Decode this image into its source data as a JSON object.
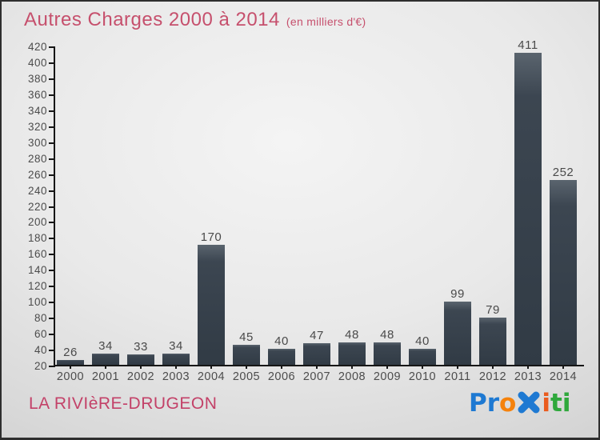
{
  "header": {
    "title": "Autres Charges 2000 à 2014",
    "subtitle": "(en milliers d'€)"
  },
  "footer": {
    "location": "LA RIVIèRE-DRUGEON"
  },
  "logo": {
    "name": "Proxiti",
    "letters": [
      {
        "char": "P",
        "color": "#1e79d2"
      },
      {
        "char": "r",
        "color": "#1e79d2"
      },
      {
        "char": "o",
        "color": "#f5820c"
      },
      {
        "char": "x",
        "color": "#1e79d2",
        "style": "x-icon"
      },
      {
        "char": "i",
        "color": "#ea5b1e"
      },
      {
        "char": "t",
        "color": "#2fa83c"
      },
      {
        "char": "i",
        "color": "#2fa83c"
      }
    ]
  },
  "colors": {
    "title_pink": "#c6506d",
    "location_pink": "#c34168",
    "bar_dark": "#313b45",
    "bar_light": "#5a646e",
    "axis": "#161616",
    "label_gray": "#4c4c4c"
  },
  "chart_data": {
    "type": "bar",
    "title": "Autres Charges 2000 à 2014",
    "subtitle": "(en milliers d'€)",
    "categories": [
      "2000",
      "2001",
      "2002",
      "2003",
      "2004",
      "2005",
      "2006",
      "2007",
      "2008",
      "2009",
      "2010",
      "2011",
      "2012",
      "2013",
      "2014"
    ],
    "values": [
      26,
      34,
      33,
      34,
      170,
      45,
      40,
      47,
      48,
      48,
      40,
      99,
      79,
      411,
      252
    ],
    "xlabel": "",
    "ylabel": "",
    "ylim": [
      20,
      420
    ],
    "yticks": [
      20,
      40,
      60,
      80,
      100,
      120,
      140,
      160,
      180,
      200,
      220,
      240,
      260,
      280,
      300,
      320,
      340,
      360,
      380,
      400,
      420
    ],
    "grid": false,
    "legend": false
  }
}
